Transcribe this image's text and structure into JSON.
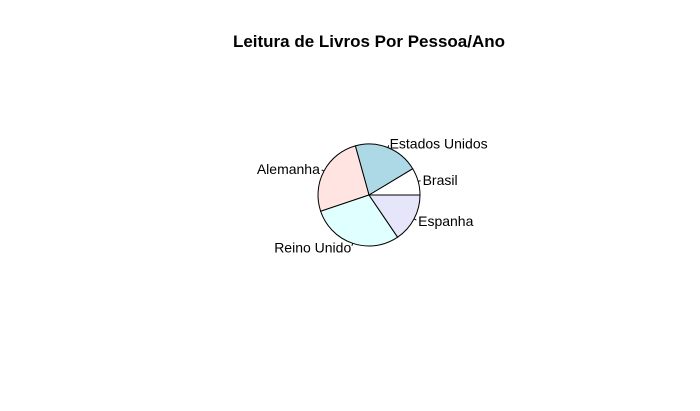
{
  "chart_data": {
    "type": "pie",
    "title": "Leitura de Livros Por Pessoa/Ano",
    "labels": [
      "Brasil",
      "Estados Unidos",
      "Alemanha",
      "Reino Unido",
      "Espanha"
    ],
    "values": [
      2.5,
      6.0,
      7.5,
      8.5,
      4.5
    ],
    "colors": [
      "#ffffff",
      "#add8e6",
      "#ffe4e1",
      "#e0ffff",
      "#e6e6fa"
    ],
    "start_angle_deg": 0,
    "direction": "counterclockwise"
  }
}
